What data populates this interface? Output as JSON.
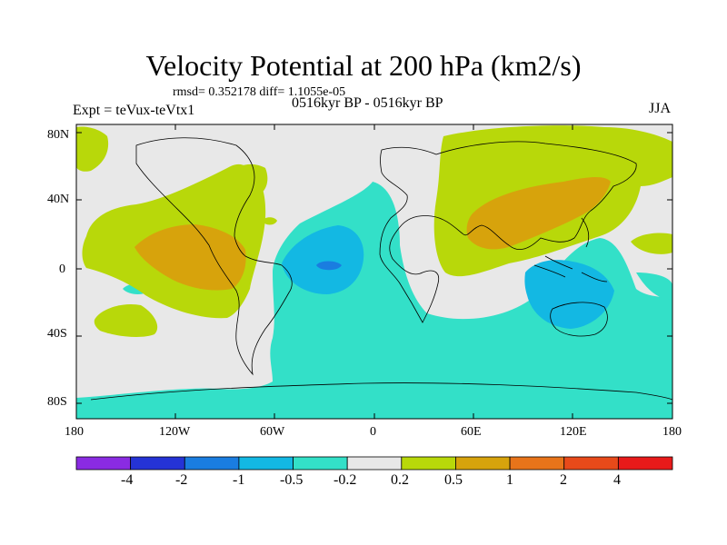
{
  "title": "Velocity Potential at 200 hPa (km2/s)",
  "stats": "rmsd= 0.352178 diff= 1.1055e-05",
  "left_label": "Expt = teVux-teVtx1",
  "center_label": "0516kyr BP - 0516kyr BP",
  "right_label": "JJA",
  "lat_ticks": [
    "80N",
    "40N",
    "0",
    "40S",
    "80S"
  ],
  "lon_ticks": [
    "180",
    "120W",
    "60W",
    "0",
    "60E",
    "120E",
    "180"
  ],
  "colorbar": {
    "labels": [
      "-4",
      "-2",
      "-1",
      "-0.5",
      "-0.2",
      "0.2",
      "0.5",
      "1",
      "2",
      "4"
    ],
    "colors": [
      "#8A2BE2",
      "#2533D6",
      "#1A7DE0",
      "#13B8E3",
      "#33E0C8",
      "#E8E8E8",
      "#B8D80A",
      "#D7A30C",
      "#E8741A",
      "#E84A1A",
      "#E81A1A"
    ]
  },
  "fill_colors": {
    "background": "#E8E8E8",
    "neg_weak": "#33E0C8",
    "neg_mid": "#13B8E3",
    "neg_strong": "#1A7DE0",
    "pos_weak": "#B8D80A",
    "pos_mid": "#D7A30C"
  }
}
